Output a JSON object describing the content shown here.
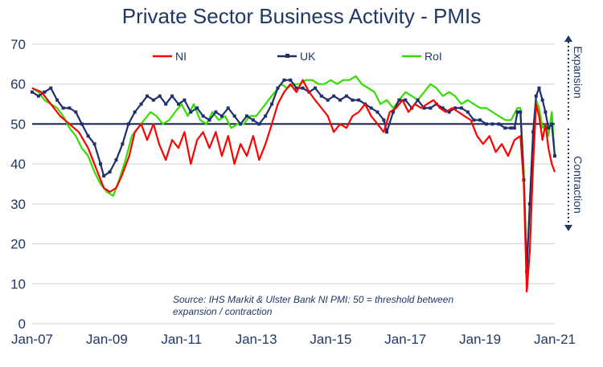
{
  "chart_data": {
    "type": "line",
    "title": "Private Sector Business Activity - PMIs",
    "ylim": [
      0,
      70
    ],
    "yticks": [
      0,
      10,
      20,
      30,
      40,
      50,
      60,
      70
    ],
    "xlim": [
      2007.0,
      2021.0
    ],
    "xticks": [
      {
        "label": "Jan-07",
        "x": 2007
      },
      {
        "label": "Jan-09",
        "x": 2009
      },
      {
        "label": "Jan-11",
        "x": 2011
      },
      {
        "label": "Jan-13",
        "x": 2013
      },
      {
        "label": "Jan-15",
        "x": 2015
      },
      {
        "label": "Jan-17",
        "x": 2017
      },
      {
        "label": "Jan-19",
        "x": 2019
      },
      {
        "label": "Jan-21",
        "x": 2021
      }
    ],
    "threshold": 50,
    "grid": true,
    "legend_position": "top",
    "series": [
      {
        "name": "NI",
        "color": "#ff0000",
        "points": [
          [
            2007.0,
            59
          ],
          [
            2007.25,
            58
          ],
          [
            2007.5,
            55
          ],
          [
            2007.75,
            52
          ],
          [
            2008.0,
            50
          ],
          [
            2008.25,
            48
          ],
          [
            2008.5,
            44
          ],
          [
            2008.75,
            38
          ],
          [
            2008.92,
            34
          ],
          [
            2009.08,
            33
          ],
          [
            2009.25,
            34
          ],
          [
            2009.4,
            37
          ],
          [
            2009.6,
            42
          ],
          [
            2009.75,
            48
          ],
          [
            2009.92,
            50
          ],
          [
            2010.08,
            46
          ],
          [
            2010.25,
            50
          ],
          [
            2010.4,
            45
          ],
          [
            2010.58,
            41
          ],
          [
            2010.75,
            46
          ],
          [
            2010.92,
            44
          ],
          [
            2011.08,
            48
          ],
          [
            2011.25,
            40
          ],
          [
            2011.42,
            46
          ],
          [
            2011.58,
            48
          ],
          [
            2011.75,
            44
          ],
          [
            2011.92,
            48
          ],
          [
            2012.08,
            42
          ],
          [
            2012.25,
            47
          ],
          [
            2012.42,
            40
          ],
          [
            2012.58,
            45
          ],
          [
            2012.75,
            42
          ],
          [
            2012.92,
            47
          ],
          [
            2013.08,
            41
          ],
          [
            2013.25,
            45
          ],
          [
            2013.42,
            50
          ],
          [
            2013.58,
            55
          ],
          [
            2013.75,
            58
          ],
          [
            2013.92,
            60
          ],
          [
            2014.08,
            58
          ],
          [
            2014.25,
            61
          ],
          [
            2014.42,
            58
          ],
          [
            2014.58,
            56
          ],
          [
            2014.75,
            54
          ],
          [
            2014.92,
            52
          ],
          [
            2015.08,
            48
          ],
          [
            2015.25,
            50
          ],
          [
            2015.42,
            49
          ],
          [
            2015.58,
            52
          ],
          [
            2015.75,
            53
          ],
          [
            2015.92,
            55
          ],
          [
            2016.08,
            52
          ],
          [
            2016.25,
            50
          ],
          [
            2016.42,
            48
          ],
          [
            2016.58,
            53
          ],
          [
            2016.75,
            54
          ],
          [
            2016.92,
            56
          ],
          [
            2017.08,
            53
          ],
          [
            2017.25,
            55
          ],
          [
            2017.42,
            54
          ],
          [
            2017.58,
            55
          ],
          [
            2017.75,
            56
          ],
          [
            2017.92,
            54
          ],
          [
            2018.08,
            53
          ],
          [
            2018.25,
            54
          ],
          [
            2018.42,
            53
          ],
          [
            2018.58,
            52
          ],
          [
            2018.75,
            51
          ],
          [
            2018.92,
            47
          ],
          [
            2019.08,
            45
          ],
          [
            2019.25,
            47
          ],
          [
            2019.42,
            43
          ],
          [
            2019.58,
            45
          ],
          [
            2019.75,
            42
          ],
          [
            2019.92,
            46
          ],
          [
            2020.08,
            47
          ],
          [
            2020.17,
            35
          ],
          [
            2020.25,
            8
          ],
          [
            2020.33,
            18
          ],
          [
            2020.42,
            40
          ],
          [
            2020.5,
            55
          ],
          [
            2020.58,
            52
          ],
          [
            2020.67,
            46
          ],
          [
            2020.75,
            50
          ],
          [
            2020.83,
            44
          ],
          [
            2020.92,
            40
          ],
          [
            2021.0,
            38
          ]
        ]
      },
      {
        "name": "UK",
        "color": "#1f2f6e",
        "points": [
          [
            2007.0,
            58
          ],
          [
            2007.17,
            57
          ],
          [
            2007.33,
            58
          ],
          [
            2007.5,
            59
          ],
          [
            2007.67,
            56
          ],
          [
            2007.83,
            54
          ],
          [
            2008.0,
            54
          ],
          [
            2008.17,
            53
          ],
          [
            2008.33,
            50
          ],
          [
            2008.5,
            47
          ],
          [
            2008.67,
            45
          ],
          [
            2008.83,
            40
          ],
          [
            2008.92,
            37
          ],
          [
            2009.08,
            38
          ],
          [
            2009.25,
            41
          ],
          [
            2009.42,
            45
          ],
          [
            2009.58,
            50
          ],
          [
            2009.75,
            53
          ],
          [
            2009.92,
            55
          ],
          [
            2010.08,
            57
          ],
          [
            2010.25,
            56
          ],
          [
            2010.42,
            57
          ],
          [
            2010.58,
            55
          ],
          [
            2010.75,
            57
          ],
          [
            2010.92,
            55
          ],
          [
            2011.08,
            56
          ],
          [
            2011.25,
            53
          ],
          [
            2011.42,
            54
          ],
          [
            2011.58,
            52
          ],
          [
            2011.75,
            51
          ],
          [
            2011.92,
            53
          ],
          [
            2012.08,
            52
          ],
          [
            2012.25,
            54
          ],
          [
            2012.42,
            52
          ],
          [
            2012.58,
            50
          ],
          [
            2012.75,
            52
          ],
          [
            2012.92,
            51
          ],
          [
            2013.08,
            50
          ],
          [
            2013.25,
            52
          ],
          [
            2013.42,
            55
          ],
          [
            2013.58,
            59
          ],
          [
            2013.75,
            61
          ],
          [
            2013.92,
            61
          ],
          [
            2014.08,
            59
          ],
          [
            2014.25,
            59
          ],
          [
            2014.42,
            58
          ],
          [
            2014.58,
            59
          ],
          [
            2014.75,
            57
          ],
          [
            2014.92,
            56
          ],
          [
            2015.08,
            57
          ],
          [
            2015.25,
            56
          ],
          [
            2015.42,
            57
          ],
          [
            2015.58,
            56
          ],
          [
            2015.75,
            56
          ],
          [
            2015.92,
            55
          ],
          [
            2016.08,
            54
          ],
          [
            2016.25,
            53
          ],
          [
            2016.42,
            51
          ],
          [
            2016.5,
            48
          ],
          [
            2016.67,
            53
          ],
          [
            2016.83,
            56
          ],
          [
            2017.0,
            56
          ],
          [
            2017.17,
            54
          ],
          [
            2017.33,
            56
          ],
          [
            2017.5,
            54
          ],
          [
            2017.67,
            54
          ],
          [
            2017.83,
            55
          ],
          [
            2018.0,
            54
          ],
          [
            2018.17,
            53
          ],
          [
            2018.33,
            54
          ],
          [
            2018.5,
            54
          ],
          [
            2018.67,
            53
          ],
          [
            2018.83,
            51
          ],
          [
            2019.0,
            51
          ],
          [
            2019.17,
            50
          ],
          [
            2019.33,
            50
          ],
          [
            2019.5,
            50
          ],
          [
            2019.67,
            49
          ],
          [
            2019.83,
            49
          ],
          [
            2019.92,
            49
          ],
          [
            2020.0,
            53
          ],
          [
            2020.08,
            53
          ],
          [
            2020.17,
            36
          ],
          [
            2020.25,
            13
          ],
          [
            2020.33,
            30
          ],
          [
            2020.42,
            48
          ],
          [
            2020.5,
            57
          ],
          [
            2020.58,
            59
          ],
          [
            2020.67,
            56
          ],
          [
            2020.75,
            53
          ],
          [
            2020.83,
            49
          ],
          [
            2020.92,
            50
          ],
          [
            2021.0,
            42
          ]
        ]
      },
      {
        "name": "RoI",
        "color": "#33dd00",
        "points": [
          [
            2007.0,
            59
          ],
          [
            2007.17,
            58
          ],
          [
            2007.33,
            56
          ],
          [
            2007.5,
            55
          ],
          [
            2007.67,
            54
          ],
          [
            2007.83,
            52
          ],
          [
            2008.0,
            49
          ],
          [
            2008.17,
            47
          ],
          [
            2008.33,
            44
          ],
          [
            2008.5,
            42
          ],
          [
            2008.67,
            38
          ],
          [
            2008.83,
            35
          ],
          [
            2009.0,
            33
          ],
          [
            2009.17,
            32
          ],
          [
            2009.33,
            36
          ],
          [
            2009.5,
            41
          ],
          [
            2009.67,
            47
          ],
          [
            2009.83,
            49
          ],
          [
            2010.0,
            51
          ],
          [
            2010.17,
            53
          ],
          [
            2010.33,
            52
          ],
          [
            2010.5,
            50
          ],
          [
            2010.67,
            51
          ],
          [
            2010.83,
            53
          ],
          [
            2011.0,
            55
          ],
          [
            2011.17,
            52
          ],
          [
            2011.33,
            55
          ],
          [
            2011.5,
            51
          ],
          [
            2011.67,
            50
          ],
          [
            2011.83,
            53
          ],
          [
            2012.0,
            51
          ],
          [
            2012.17,
            52
          ],
          [
            2012.33,
            49
          ],
          [
            2012.5,
            50
          ],
          [
            2012.67,
            50
          ],
          [
            2012.83,
            52
          ],
          [
            2013.0,
            52
          ],
          [
            2013.17,
            54
          ],
          [
            2013.33,
            56
          ],
          [
            2013.5,
            58
          ],
          [
            2013.67,
            60
          ],
          [
            2013.83,
            59
          ],
          [
            2014.0,
            60
          ],
          [
            2014.17,
            60
          ],
          [
            2014.33,
            61
          ],
          [
            2014.5,
            61
          ],
          [
            2014.67,
            60
          ],
          [
            2014.83,
            60
          ],
          [
            2015.0,
            61
          ],
          [
            2015.17,
            60
          ],
          [
            2015.33,
            61
          ],
          [
            2015.5,
            61
          ],
          [
            2015.67,
            62
          ],
          [
            2015.83,
            60
          ],
          [
            2016.0,
            59
          ],
          [
            2016.17,
            58
          ],
          [
            2016.33,
            55
          ],
          [
            2016.5,
            56
          ],
          [
            2016.67,
            54
          ],
          [
            2016.83,
            56
          ],
          [
            2017.0,
            58
          ],
          [
            2017.17,
            57
          ],
          [
            2017.33,
            56
          ],
          [
            2017.5,
            58
          ],
          [
            2017.67,
            60
          ],
          [
            2017.83,
            59
          ],
          [
            2018.0,
            57
          ],
          [
            2018.17,
            58
          ],
          [
            2018.33,
            57
          ],
          [
            2018.5,
            55
          ],
          [
            2018.67,
            56
          ],
          [
            2018.83,
            55
          ],
          [
            2019.0,
            54
          ],
          [
            2019.17,
            54
          ],
          [
            2019.33,
            53
          ],
          [
            2019.5,
            52
          ],
          [
            2019.67,
            51
          ],
          [
            2019.83,
            51
          ],
          [
            2020.0,
            54
          ],
          [
            2020.08,
            54
          ],
          [
            2020.17,
            38
          ],
          [
            2020.25,
            14
          ],
          [
            2020.33,
            30
          ],
          [
            2020.42,
            48
          ],
          [
            2020.5,
            56
          ],
          [
            2020.58,
            54
          ],
          [
            2020.67,
            49
          ],
          [
            2020.75,
            50
          ],
          [
            2020.83,
            47
          ],
          [
            2020.92,
            53
          ],
          [
            2021.0,
            42
          ]
        ]
      }
    ],
    "annotation": [
      "Source: IHS Markit & Ulster Bank NI PMI: 50 = threshold between",
      "expansion / contraction"
    ],
    "side_labels": {
      "top": "Expansion",
      "bottom": "Contraction"
    }
  }
}
